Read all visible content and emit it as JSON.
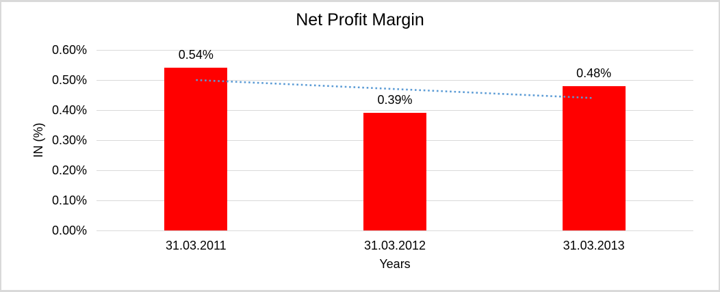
{
  "chart_data": {
    "type": "bar",
    "title": "Net Profit Margin",
    "xlabel": "Years",
    "ylabel": "IN (%)",
    "categories": [
      "31.03.2011",
      "31.03.2012",
      "31.03.2013"
    ],
    "values": [
      0.54,
      0.39,
      0.48
    ],
    "data_labels": [
      "0.54%",
      "0.39%",
      "0.48%"
    ],
    "ylim": [
      0,
      0.6
    ],
    "ytick_step": 0.1,
    "ytick_labels": [
      "0.00%",
      "0.10%",
      "0.20%",
      "0.30%",
      "0.40%",
      "0.50%",
      "0.60%"
    ],
    "grid": true,
    "legend_position": "none",
    "bar_color": "#FF0000",
    "gridline_color": "#D9D9D9",
    "text_color": "#000000",
    "frame_border_color": "#D9D9D9",
    "trendline": {
      "type": "linear",
      "style": "dotted",
      "color": "#5B9BD5",
      "start_value": 0.5,
      "end_value": 0.44
    }
  }
}
